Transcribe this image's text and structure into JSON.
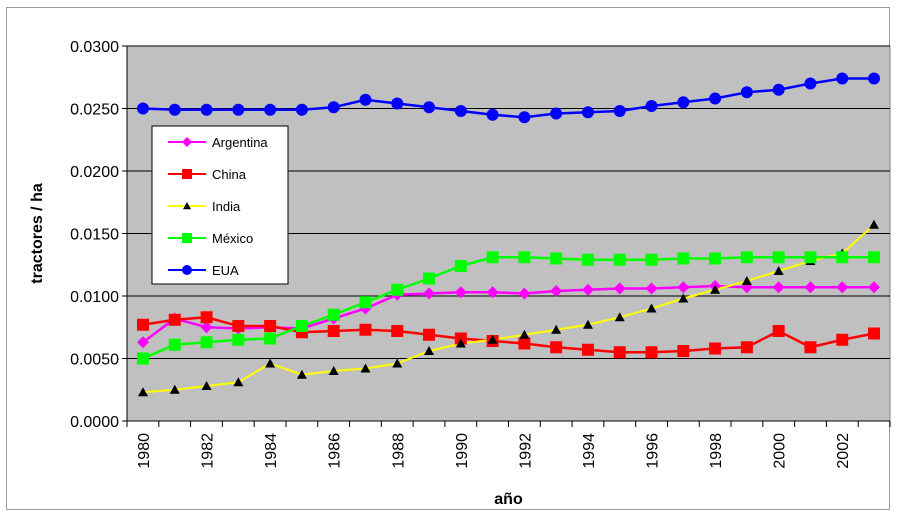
{
  "chart_data": {
    "type": "line",
    "xlabel": "año",
    "ylabel": "tractores / ha",
    "ylim": [
      0,
      0.03
    ],
    "y_ticks": [
      "0.0000",
      "0.0050",
      "0.0100",
      "0.0150",
      "0.0200",
      "0.0250",
      "0.0300"
    ],
    "x": [
      1980,
      1981,
      1982,
      1983,
      1984,
      1985,
      1986,
      1987,
      1988,
      1989,
      1990,
      1991,
      1992,
      1993,
      1994,
      1995,
      1996,
      1997,
      1998,
      1999,
      2000,
      2001,
      2002,
      2003
    ],
    "x_tick_labels": [
      "1980",
      "1982",
      "1984",
      "1986",
      "1988",
      "1990",
      "1992",
      "1994",
      "1996",
      "1998",
      "2000",
      "2002"
    ],
    "plot_background": "#c0c0c0",
    "grid": "horizontal",
    "legend_position": "left, upper-middle of plot",
    "series": [
      {
        "name": "Argentina",
        "color": "#ff00ff",
        "marker": "diamond",
        "values": [
          0.0063,
          0.0082,
          0.0075,
          0.0074,
          0.0075,
          0.0074,
          0.0082,
          0.009,
          0.0101,
          0.0102,
          0.0103,
          0.0103,
          0.0102,
          0.0104,
          0.0105,
          0.0106,
          0.0106,
          0.0107,
          0.0108,
          0.0107,
          0.0107,
          0.0107,
          0.0107,
          0.0107
        ]
      },
      {
        "name": "China",
        "color": "#ff0000",
        "marker": "square",
        "values": [
          0.0077,
          0.0081,
          0.0083,
          0.0076,
          0.0076,
          0.0071,
          0.0072,
          0.0073,
          0.0072,
          0.0069,
          0.0066,
          0.0064,
          0.0062,
          0.0059,
          0.0057,
          0.0055,
          0.0055,
          0.0056,
          0.0058,
          0.0059,
          0.0072,
          0.0059,
          0.0065,
          0.007
        ]
      },
      {
        "name": "India",
        "color": "#ffff00",
        "marker": "triangle",
        "values": [
          0.0023,
          0.0025,
          0.0028,
          0.0031,
          0.0046,
          0.0037,
          0.004,
          0.0042,
          0.0046,
          0.0056,
          0.0062,
          0.0065,
          0.0069,
          0.0073,
          0.0077,
          0.0083,
          0.009,
          0.0098,
          0.0105,
          0.0112,
          0.012,
          0.0128,
          0.0134,
          0.0157
        ]
      },
      {
        "name": "México",
        "color": "#00ff00",
        "marker": "square",
        "values": [
          0.005,
          0.0061,
          0.0063,
          0.0065,
          0.0066,
          0.0076,
          0.0085,
          0.0095,
          0.0105,
          0.0114,
          0.0124,
          0.0131,
          0.0131,
          0.013,
          0.0129,
          0.0129,
          0.0129,
          0.013,
          0.013,
          0.0131,
          0.0131,
          0.0131,
          0.0131,
          0.0131
        ]
      },
      {
        "name": "EUA",
        "color": "#0000ff",
        "marker": "circle",
        "values": [
          0.025,
          0.0249,
          0.0249,
          0.0249,
          0.0249,
          0.0249,
          0.0251,
          0.0257,
          0.0254,
          0.0251,
          0.0248,
          0.0245,
          0.0243,
          0.0246,
          0.0247,
          0.0248,
          0.0252,
          0.0255,
          0.0258,
          0.0263,
          0.0265,
          0.027,
          0.0274,
          0.0274
        ]
      }
    ]
  }
}
